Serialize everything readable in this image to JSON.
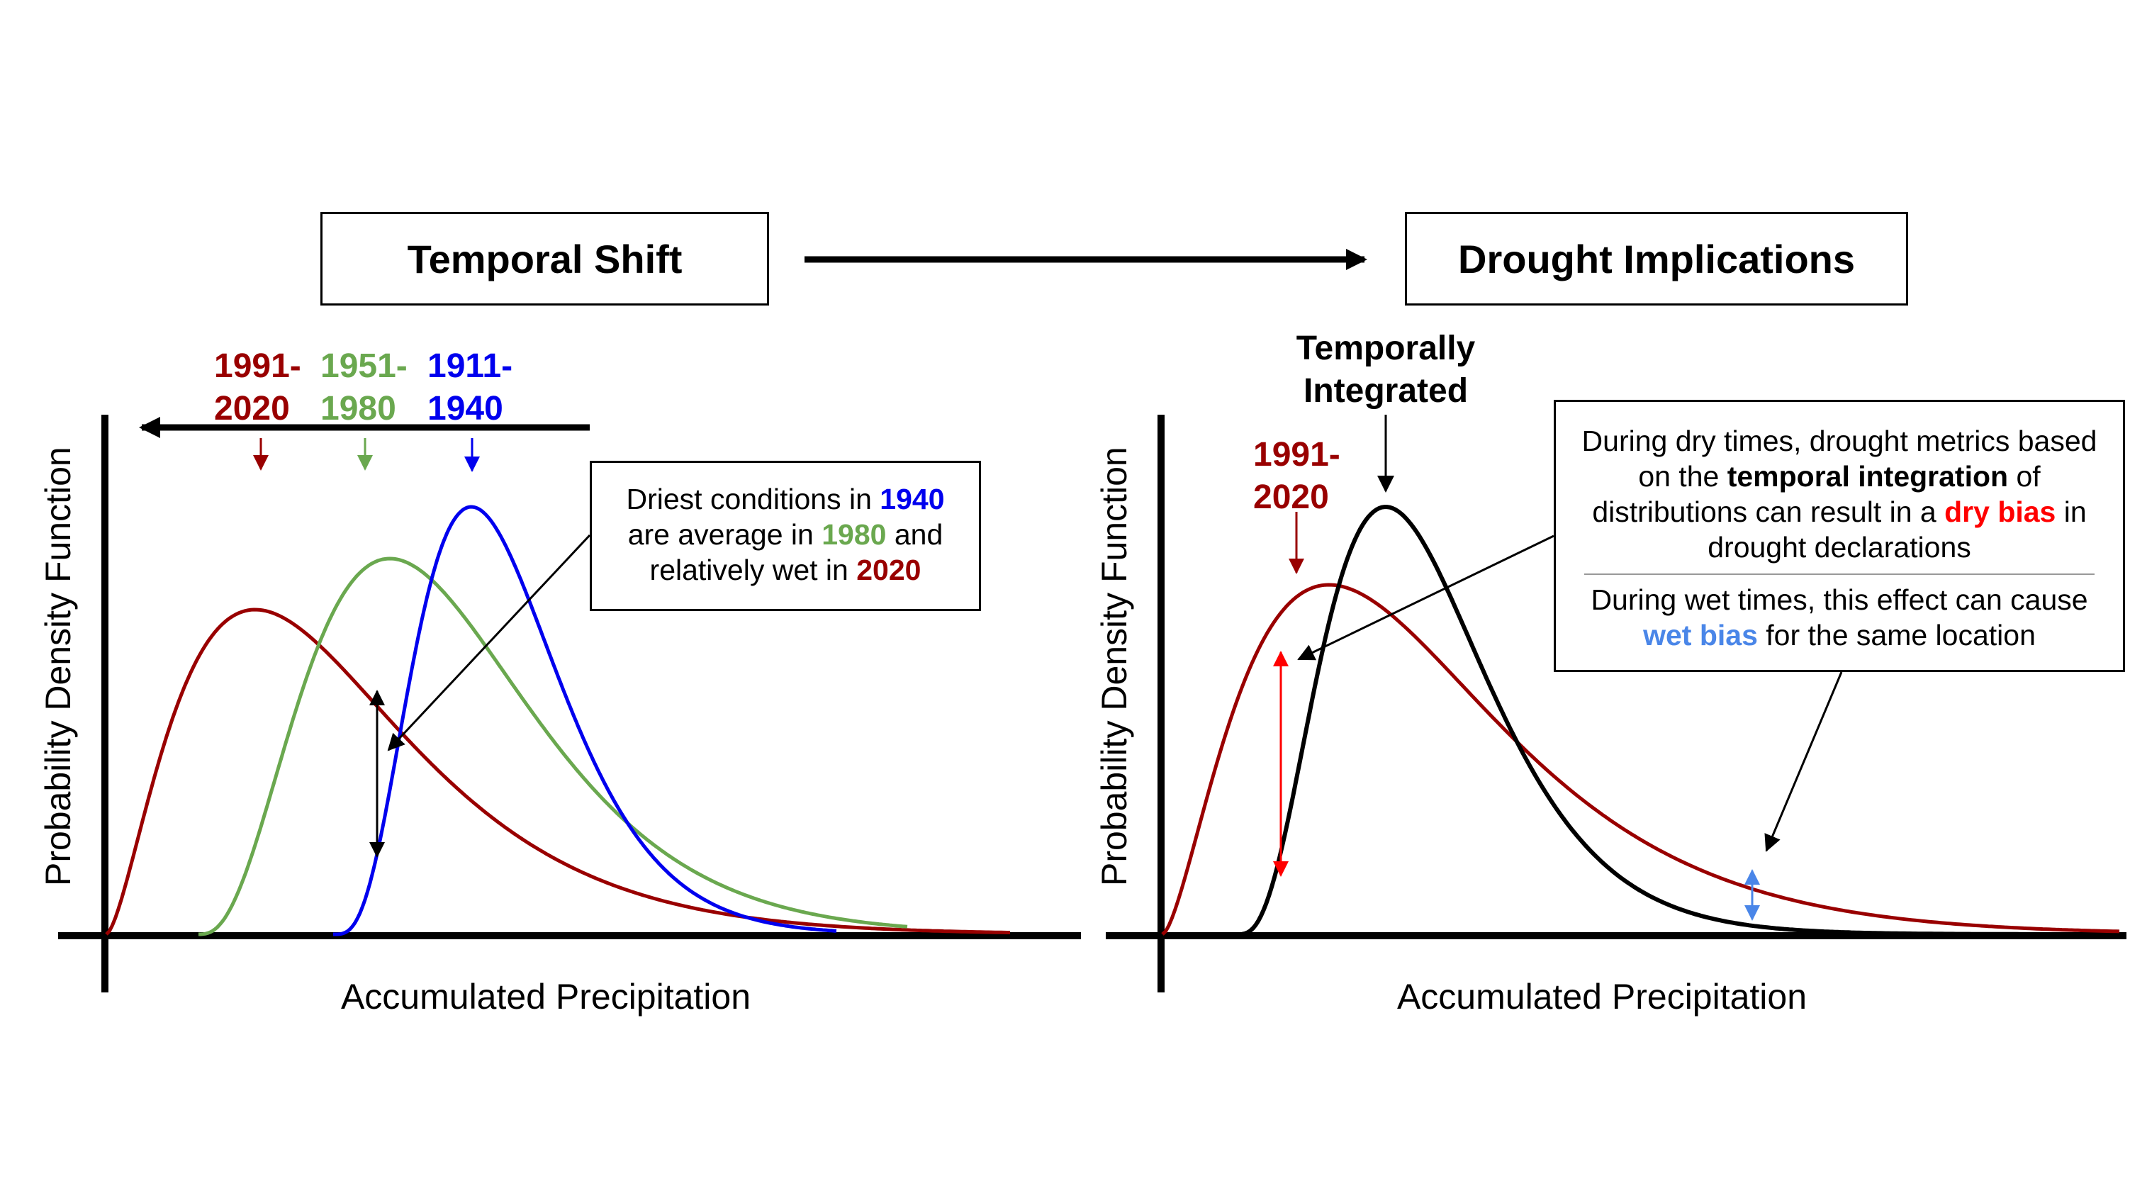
{
  "headers": {
    "left": "Temporal Shift",
    "right": "Drought Implications"
  },
  "left_panel": {
    "ylabel": "Probability Density Function",
    "xlabel": "Accumulated Precipitation",
    "periods": [
      {
        "line1": "1991-",
        "line2": "2020",
        "color": "#990000"
      },
      {
        "line1": "1951-",
        "line2": "1980",
        "color": "#6aa84f"
      },
      {
        "line1": "1911-",
        "line2": "1940",
        "color": "#0000ee"
      }
    ],
    "note": {
      "t1": "Driest conditions in ",
      "y1940": "1940",
      "t2": "are average in ",
      "y1980": "1980",
      "t3": " and",
      "t4": "relatively wet in ",
      "y2020": "2020"
    }
  },
  "right_panel": {
    "ylabel": "Probability Density Function",
    "xlabel": "Accumulated Precipitation",
    "integrated_line1": "Temporally",
    "integrated_line2": "Integrated",
    "period_line1": "1991-",
    "period_line2": "2020",
    "note": {
      "a1": "During dry times, drought metrics based",
      "a2": "on the ",
      "a2b": "temporal integration",
      "a2c": " of",
      "a3": "distributions can result in a ",
      "a3b": "dry bias",
      "a3c": " in",
      "a4": "drought declarations",
      "b1": "During wet times, this effect can cause",
      "b2b": "wet bias",
      "b2c": " for the same location"
    }
  },
  "colors": {
    "recent": "#990000",
    "mid": "#6aa84f",
    "early": "#0000ee",
    "integrated": "#000000",
    "dry_bias": "#ff0000",
    "wet_bias": "#4a86e8"
  }
}
